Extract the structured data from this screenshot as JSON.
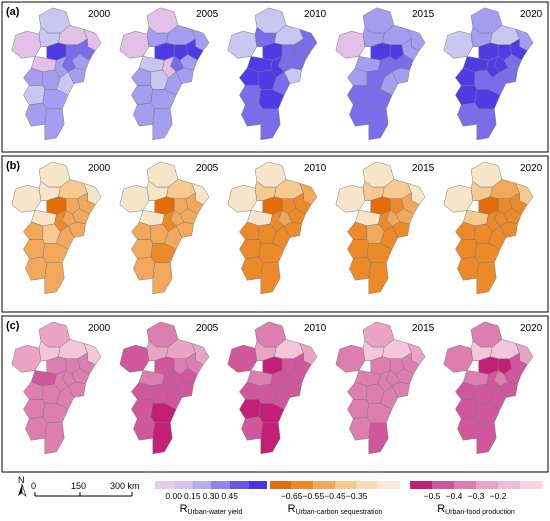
{
  "panels": [
    {
      "label": "(a)",
      "ramp": [
        "#e3c0e8",
        "#c9c6f2",
        "#a59df0",
        "#7b6cec",
        "#4f3be6"
      ],
      "maps": [
        {
          "year": "2000",
          "classes": [
            0,
            1,
            1,
            0,
            0,
            4,
            3,
            3,
            2,
            3,
            0,
            2,
            2,
            2,
            2,
            1,
            1,
            2,
            2,
            2
          ]
        },
        {
          "year": "2005",
          "classes": [
            0,
            0,
            2,
            2,
            2,
            4,
            4,
            4,
            2,
            3,
            1,
            0,
            2,
            2,
            1,
            2,
            2,
            2,
            2,
            2
          ]
        },
        {
          "year": "2010",
          "classes": [
            1,
            1,
            3,
            1,
            3,
            4,
            3,
            3,
            3,
            3,
            4,
            4,
            1,
            4,
            4,
            3,
            3,
            4,
            3,
            3
          ]
        },
        {
          "year": "2015",
          "classes": [
            0,
            2,
            2,
            2,
            2,
            4,
            4,
            2,
            3,
            3,
            2,
            3,
            2,
            2,
            3,
            2,
            3,
            3,
            3,
            3
          ]
        },
        {
          "year": "2020",
          "classes": [
            1,
            2,
            2,
            1,
            2,
            4,
            4,
            4,
            3,
            4,
            4,
            4,
            3,
            4,
            3,
            3,
            4,
            4,
            3,
            3
          ]
        }
      ]
    },
    {
      "label": "(b)",
      "ramp": [
        "#f6e5c8",
        "#f5c98f",
        "#f1a85a",
        "#ec8a2a",
        "#e46d0a"
      ],
      "maps": [
        {
          "year": "2000",
          "classes": [
            0,
            0,
            0,
            1,
            0,
            4,
            2,
            2,
            2,
            2,
            0,
            3,
            2,
            2,
            1,
            2,
            2,
            2,
            2,
            2
          ]
        },
        {
          "year": "2005",
          "classes": [
            0,
            0,
            0,
            1,
            0,
            4,
            2,
            2,
            2,
            2,
            0,
            3,
            2,
            2,
            2,
            2,
            2,
            3,
            2,
            2
          ]
        },
        {
          "year": "2010",
          "classes": [
            0,
            0,
            1,
            1,
            2,
            4,
            3,
            3,
            3,
            2,
            0,
            3,
            3,
            3,
            3,
            3,
            3,
            3,
            3,
            3
          ]
        },
        {
          "year": "2015",
          "classes": [
            0,
            0,
            1,
            1,
            0,
            4,
            3,
            2,
            2,
            2,
            0,
            3,
            3,
            3,
            2,
            3,
            3,
            3,
            3,
            3
          ]
        },
        {
          "year": "2020",
          "classes": [
            0,
            0,
            1,
            2,
            1,
            4,
            3,
            3,
            3,
            3,
            1,
            3,
            3,
            3,
            3,
            3,
            3,
            3,
            3,
            3
          ]
        }
      ]
    },
    {
      "label": "(c)",
      "ramp": [
        "#f4c6dc",
        "#e9a3c5",
        "#dc7fb0",
        "#d0579b",
        "#c41f77"
      ],
      "maps": [
        {
          "year": "2000",
          "classes": [
            1,
            1,
            0,
            0,
            0,
            2,
            2,
            2,
            2,
            2,
            3,
            2,
            2,
            2,
            2,
            2,
            2,
            2,
            2,
            2
          ]
        },
        {
          "year": "2005",
          "classes": [
            3,
            2,
            1,
            1,
            1,
            3,
            2,
            2,
            3,
            3,
            2,
            3,
            3,
            3,
            3,
            3,
            3,
            4,
            3,
            4
          ]
        },
        {
          "year": "2010",
          "classes": [
            3,
            2,
            1,
            0,
            1,
            4,
            3,
            3,
            3,
            3,
            2,
            3,
            3,
            3,
            3,
            3,
            4,
            4,
            3,
            4
          ]
        },
        {
          "year": "2015",
          "classes": [
            2,
            1,
            0,
            0,
            1,
            2,
            2,
            2,
            2,
            2,
            2,
            2,
            2,
            2,
            2,
            2,
            2,
            2,
            2,
            3
          ]
        },
        {
          "year": "2020",
          "classes": [
            2,
            2,
            0,
            0,
            1,
            4,
            4,
            3,
            3,
            2,
            2,
            3,
            3,
            3,
            3,
            3,
            3,
            3,
            3,
            3
          ]
        }
      ]
    }
  ],
  "legends": [
    {
      "name": "R",
      "subscript": "Urban-water yield",
      "ticks": [
        "0.00",
        "0.15",
        "0.30",
        "0.45"
      ],
      "colors": [
        "#ecc8ec",
        "#d6c4f0",
        "#b5adf0",
        "#8f83ec",
        "#6a57e8",
        "#4a34e2"
      ]
    },
    {
      "name": "R",
      "subscript": "Urban-carbon sequestration",
      "ticks": [
        "−0.65",
        "−0.55",
        "−0.45",
        "−0.35"
      ],
      "colors": [
        "#e46d0a",
        "#ec8a2a",
        "#f1a85a",
        "#f5c98f",
        "#f7dcb4",
        "#f8ecd8"
      ]
    },
    {
      "name": "R",
      "subscript": "Urban-food production",
      "ticks": [
        "−0.5",
        "−0.4",
        "−0.3",
        "−0.2"
      ],
      "colors": [
        "#c41f77",
        "#d0579b",
        "#dc7fb0",
        "#e9a3c5",
        "#f1bcd6",
        "#f7d4e6"
      ]
    }
  ],
  "scale_bar": {
    "north": "N",
    "ticks": [
      "0",
      "150",
      "300 km"
    ]
  }
}
